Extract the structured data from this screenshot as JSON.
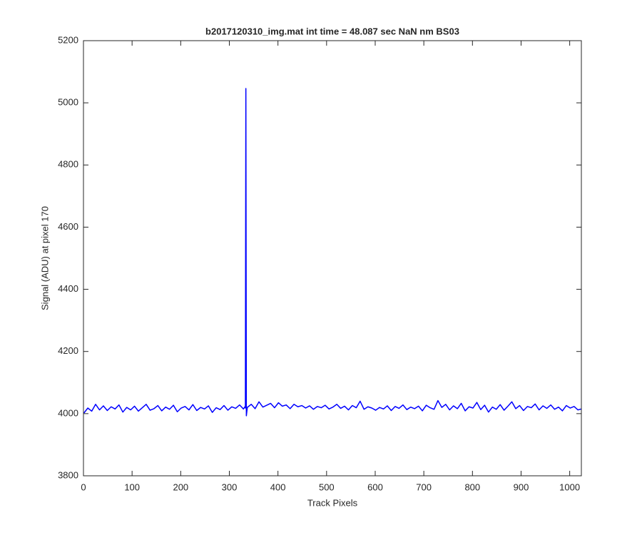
{
  "chart_data": {
    "type": "line",
    "title": "b2017120310_img.mat int time = 48.087 sec  NaN nm BS03",
    "x_label": "Track Pixels",
    "y_label": "Signal (ADU) at pixel 170",
    "xlim": [
      0,
      1024
    ],
    "ylim": [
      3800,
      5200
    ],
    "xticks": [
      0,
      100,
      200,
      300,
      400,
      500,
      600,
      700,
      800,
      900,
      1000
    ],
    "yticks": [
      3800,
      4000,
      4200,
      4400,
      4600,
      4800,
      5000,
      5200
    ],
    "grid": false,
    "x": [
      1,
      9,
      17,
      25,
      33,
      41,
      49,
      57,
      65,
      73,
      81,
      89,
      97,
      105,
      113,
      121,
      129,
      137,
      145,
      153,
      161,
      169,
      177,
      185,
      193,
      201,
      209,
      217,
      225,
      233,
      241,
      249,
      257,
      265,
      273,
      281,
      289,
      297,
      305,
      313,
      321,
      329,
      332,
      333,
      334,
      335,
      337,
      345,
      353,
      361,
      369,
      377,
      385,
      393,
      401,
      409,
      417,
      425,
      433,
      441,
      449,
      457,
      465,
      473,
      481,
      489,
      497,
      505,
      513,
      521,
      529,
      537,
      545,
      553,
      561,
      569,
      577,
      585,
      593,
      601,
      609,
      617,
      625,
      633,
      641,
      649,
      657,
      665,
      673,
      681,
      689,
      697,
      705,
      713,
      721,
      729,
      737,
      745,
      753,
      761,
      769,
      777,
      785,
      793,
      801,
      809,
      817,
      825,
      833,
      841,
      849,
      857,
      865,
      873,
      881,
      889,
      897,
      905,
      913,
      921,
      929,
      937,
      945,
      953,
      961,
      969,
      977,
      985,
      993,
      1001,
      1009,
      1017,
      1024
    ],
    "series": [
      {
        "color": "#0000ff",
        "values": [
          4002,
          4018,
          4008,
          4030,
          4012,
          4025,
          4010,
          4022,
          4015,
          4028,
          4005,
          4020,
          4012,
          4024,
          4008,
          4019,
          4030,
          4011,
          4016,
          4026,
          4009,
          4021,
          4014,
          4027,
          4006,
          4018,
          4023,
          4012,
          4029,
          4010,
          4020,
          4015,
          4025,
          4004,
          4019,
          4013,
          4026,
          4011,
          4022,
          4017,
          4028,
          4015,
          4022,
          4018,
          5046,
          3993,
          4020,
          4030,
          4016,
          4038,
          4021,
          4027,
          4033,
          4019,
          4035,
          4024,
          4028,
          4016,
          4030,
          4022,
          4026,
          4018,
          4025,
          4014,
          4023,
          4019,
          4027,
          4015,
          4021,
          4030,
          4017,
          4024,
          4012,
          4026,
          4019,
          4040,
          4014,
          4022,
          4018,
          4011,
          4020,
          4015,
          4025,
          4010,
          4023,
          4017,
          4028,
          4013,
          4021,
          4016,
          4024,
          4009,
          4027,
          4019,
          4014,
          4042,
          4020,
          4030,
          4012,
          4025,
          4016,
          4033,
          4009,
          4022,
          4018,
          4036,
          4013,
          4027,
          4005,
          4021,
          4014,
          4029,
          4011,
          4024,
          4038,
          4016,
          4026,
          4010,
          4023,
          4019,
          4031,
          4012,
          4025,
          4017,
          4028,
          4014,
          4021,
          4009,
          4026,
          4018,
          4023,
          4012,
          4015
        ]
      }
    ]
  }
}
